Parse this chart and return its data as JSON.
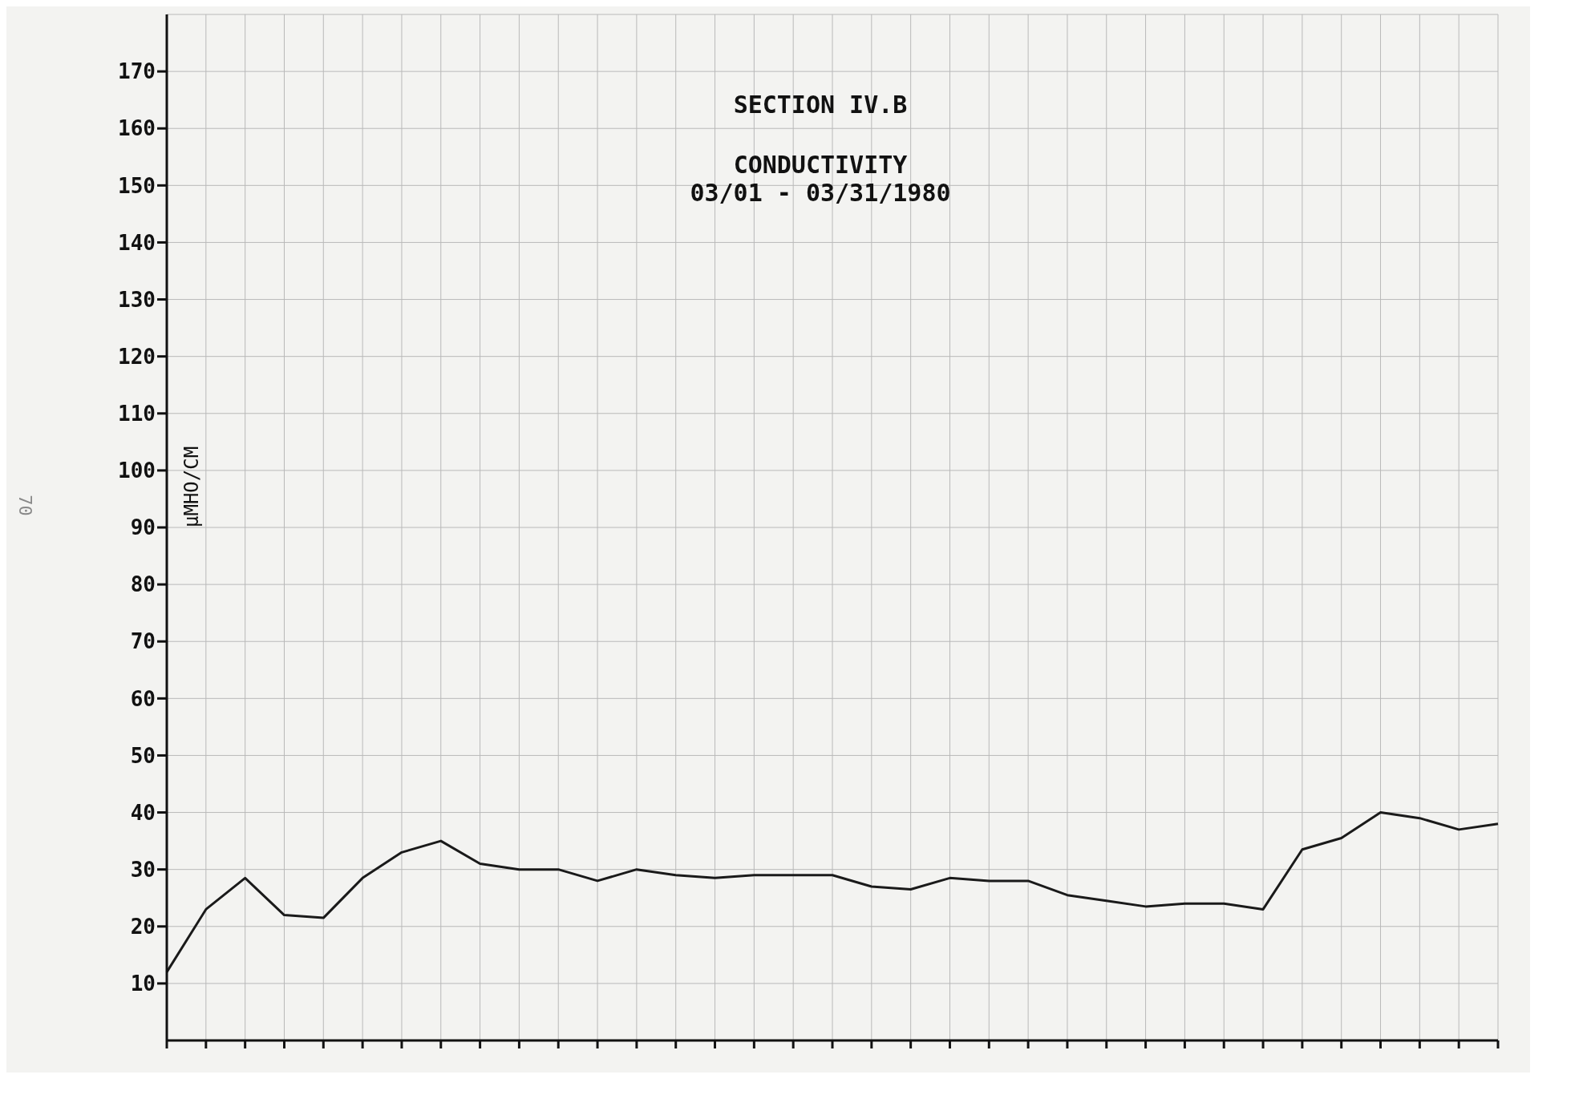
{
  "chart_data": {
    "type": "line",
    "title": "SECTION IV.B",
    "subtitle": "CONDUCTIVITY\n03/01 - 03/31/1980",
    "ylabel": "µMHO/CM",
    "annotations": [
      "70"
    ],
    "categories": [
      null,
      null,
      null,
      null,
      null,
      null,
      null,
      null,
      null,
      null,
      null,
      null,
      null,
      null,
      null,
      null,
      null,
      null,
      null,
      null,
      null,
      null,
      null,
      null,
      null,
      null,
      null,
      null,
      null,
      null,
      null,
      null,
      null,
      null,
      null
    ],
    "series": [
      {
        "color": "#1a1a1a",
        "values": [
          12,
          23,
          28.5,
          22,
          21.5,
          28.5,
          33,
          35,
          31,
          30,
          30,
          28,
          30,
          29,
          28.5,
          29,
          29,
          29,
          27,
          26.5,
          28.5,
          28,
          28,
          25.5,
          24.5,
          23.5,
          24,
          24,
          23,
          33.5,
          35.5,
          40,
          39,
          37,
          38
        ]
      }
    ],
    "ylim": [
      0,
      180
    ],
    "yticks": [
      10,
      20,
      30,
      40,
      50,
      60,
      70,
      80,
      90,
      100,
      110,
      120,
      130,
      140,
      150,
      160,
      170
    ],
    "grid": true,
    "legend": false,
    "marker": "none",
    "line_style": "solid"
  }
}
